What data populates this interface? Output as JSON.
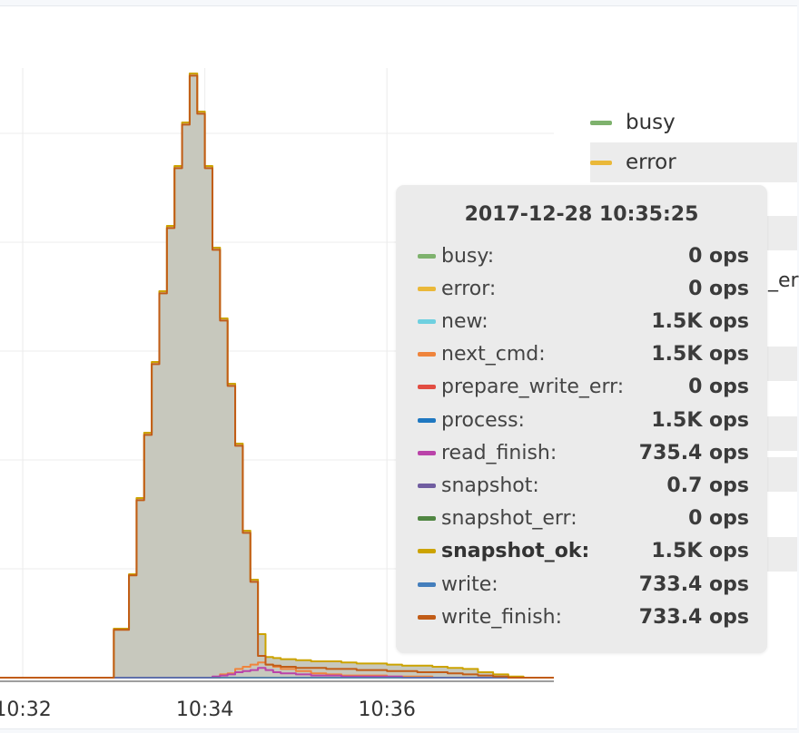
{
  "chart_data": {
    "type": "area",
    "x_ticks": [
      "10:32",
      "10:34",
      "10:36"
    ],
    "xlim": [
      "10:31:45",
      "10:37:50"
    ],
    "ylim": [
      0,
      5.6
    ],
    "grid": true,
    "legend_position": "right",
    "x": [
      "10:32:40",
      "10:32:50",
      "10:33:00",
      "10:33:10",
      "10:33:15",
      "10:33:20",
      "10:33:25",
      "10:33:30",
      "10:33:35",
      "10:33:40",
      "10:33:45",
      "10:33:50",
      "10:33:55",
      "10:34:00",
      "10:34:05",
      "10:34:10",
      "10:34:15",
      "10:34:20",
      "10:34:25",
      "10:34:30",
      "10:34:35",
      "10:34:40",
      "10:34:45",
      "10:34:50",
      "10:35:00",
      "10:35:10",
      "10:35:20",
      "10:35:30",
      "10:35:40",
      "10:35:50",
      "10:36:00",
      "10:36:10",
      "10:36:20",
      "10:36:30",
      "10:36:40",
      "10:36:50",
      "10:37:00",
      "10:37:10",
      "10:37:20",
      "10:37:30",
      "10:37:40"
    ],
    "series": [
      {
        "name": "busy",
        "color": "#7eb26d",
        "values": [
          0,
          0,
          0,
          0,
          0,
          0,
          0,
          0,
          0,
          0,
          0,
          0,
          0,
          0,
          0,
          0,
          0,
          0,
          0,
          0,
          0,
          0,
          0,
          0,
          0,
          0,
          0,
          0,
          0,
          0,
          0,
          0,
          0,
          0,
          0,
          0,
          0,
          0,
          0,
          0,
          0
        ]
      },
      {
        "name": "error",
        "color": "#eab839",
        "values": [
          0,
          0,
          0,
          0,
          0,
          0,
          0,
          0,
          0,
          0,
          0,
          0,
          0,
          0,
          0,
          0,
          0,
          0,
          0,
          0,
          0,
          0,
          0,
          0,
          0,
          0,
          0,
          0,
          0,
          0,
          0,
          0,
          0,
          0,
          0,
          0,
          0,
          0,
          0,
          0,
          0
        ]
      },
      {
        "name": "new",
        "color": "#6ed0e0",
        "values": [
          0,
          0,
          0,
          0,
          0,
          0,
          0,
          0,
          0,
          0,
          0,
          0,
          0,
          0,
          0,
          0,
          0,
          0,
          0,
          0,
          0,
          0,
          0,
          0,
          0,
          0,
          0,
          0,
          0,
          0,
          0,
          0,
          0,
          0,
          0,
          0,
          0,
          0,
          0,
          0,
          0
        ]
      },
      {
        "name": "next_cmd",
        "color": "#ef843c",
        "values": [
          0,
          0,
          0,
          0,
          0,
          0,
          0,
          0,
          0,
          0,
          0,
          0,
          0,
          0,
          0,
          0.03,
          0.04,
          0.08,
          0.1,
          0.12,
          0.14,
          0.12,
          0.1,
          0.08,
          0.06,
          0.04,
          0.03,
          0.02,
          0.02,
          0.02,
          0.01,
          0.01,
          0.01,
          0.0,
          0,
          0,
          0,
          0,
          0,
          0,
          0
        ]
      },
      {
        "name": "prepare_write_err",
        "color": "#e24d42",
        "values": [
          0,
          0,
          0,
          0,
          0,
          0,
          0,
          0,
          0,
          0,
          0,
          0,
          0,
          0,
          0,
          0,
          0,
          0,
          0,
          0,
          0,
          0,
          0,
          0,
          0,
          0,
          0,
          0,
          0,
          0,
          0,
          0,
          0,
          0,
          0,
          0,
          0,
          0,
          0,
          0,
          0
        ]
      },
      {
        "name": "process",
        "color": "#1f78c1",
        "values": [
          0,
          0,
          0,
          0,
          0,
          0,
          0,
          0,
          0,
          0,
          0,
          0,
          0,
          0,
          0,
          0,
          0,
          0,
          0,
          0,
          0,
          0,
          0,
          0,
          0,
          0,
          0,
          0,
          0,
          0,
          0,
          0,
          0,
          0,
          0,
          0,
          0,
          0,
          0,
          0,
          0
        ]
      },
      {
        "name": "read_finish",
        "color": "#ba43a9",
        "values": [
          0,
          0,
          0,
          0,
          0,
          0,
          0,
          0,
          0,
          0,
          0,
          0,
          0,
          0,
          0.01,
          0.02,
          0.03,
          0.05,
          0.06,
          0.07,
          0.09,
          0.07,
          0.05,
          0.04,
          0.03,
          0.02,
          0.02,
          0.01,
          0.01,
          0.01,
          0.01,
          0,
          0,
          0,
          0,
          0,
          0,
          0,
          0,
          0,
          0
        ]
      },
      {
        "name": "snapshot",
        "color": "#705da0",
        "values": [
          0,
          0,
          0,
          0,
          0,
          0,
          0,
          0,
          0,
          0,
          0,
          0,
          0,
          0,
          0,
          0,
          0,
          0,
          0,
          0,
          0,
          0,
          0,
          0,
          0,
          0,
          0,
          0,
          0,
          0,
          0,
          0,
          0,
          0,
          0,
          0,
          0,
          0,
          0,
          0,
          0
        ]
      },
      {
        "name": "snapshot_err",
        "color": "#508642",
        "values": [
          0,
          0,
          0,
          0,
          0,
          0,
          0,
          0,
          0,
          0,
          0,
          0,
          0,
          0,
          0,
          0,
          0,
          0,
          0,
          0,
          0,
          0,
          0,
          0,
          0,
          0,
          0,
          0,
          0,
          0,
          0,
          0,
          0,
          0,
          0,
          0,
          0,
          0,
          0,
          0,
          0
        ]
      },
      {
        "name": "snapshot_ok",
        "color": "#cca300",
        "values": [
          0,
          0,
          0.45,
          0.95,
          1.65,
          2.25,
          2.9,
          3.55,
          4.15,
          4.7,
          5.1,
          5.55,
          5.2,
          4.7,
          3.95,
          3.3,
          2.7,
          2.15,
          1.35,
          0.9,
          0.4,
          0.19,
          0.18,
          0.17,
          0.16,
          0.15,
          0.15,
          0.14,
          0.13,
          0.13,
          0.12,
          0.11,
          0.11,
          0.1,
          0.09,
          0.08,
          0.05,
          0.03,
          0.01,
          0,
          0
        ]
      },
      {
        "name": "write",
        "color": "#447ebc",
        "values": [
          0,
          0,
          0,
          0,
          0,
          0,
          0,
          0,
          0,
          0,
          0,
          0,
          0,
          0,
          0,
          0,
          0,
          0,
          0,
          0,
          0,
          0,
          0,
          0,
          0,
          0,
          0,
          0,
          0,
          0,
          0,
          0,
          0,
          0,
          0,
          0,
          0,
          0,
          0,
          0,
          0
        ]
      },
      {
        "name": "write_finish",
        "color": "#c15c17",
        "values": [
          0,
          0,
          0.44,
          0.94,
          1.63,
          2.23,
          2.88,
          3.53,
          4.13,
          4.68,
          5.08,
          5.53,
          5.18,
          4.68,
          3.93,
          3.28,
          2.68,
          2.13,
          1.33,
          0.88,
          0.2,
          0.12,
          0.11,
          0.1,
          0.09,
          0.09,
          0.08,
          0.08,
          0.07,
          0.07,
          0.06,
          0.06,
          0.05,
          0.05,
          0.04,
          0.03,
          0.02,
          0.01,
          0,
          0,
          0
        ]
      }
    ]
  },
  "legend": {
    "items": [
      {
        "label": "busy",
        "color": "#7eb26d"
      },
      {
        "label": "error",
        "color": "#eab839"
      }
    ],
    "peek_text": "_er"
  },
  "tooltip": {
    "title": "2017-12-28 10:35:25",
    "rows": [
      {
        "name": "busy:",
        "value": "0 ops",
        "color": "#7eb26d"
      },
      {
        "name": "error:",
        "value": "0 ops",
        "color": "#eab839"
      },
      {
        "name": "new:",
        "value": "1.5K ops",
        "color": "#6ed0e0"
      },
      {
        "name": "next_cmd:",
        "value": "1.5K ops",
        "color": "#ef843c"
      },
      {
        "name": "prepare_write_err:",
        "value": "0 ops",
        "color": "#e24d42"
      },
      {
        "name": "process:",
        "value": "1.5K ops",
        "color": "#1f78c1"
      },
      {
        "name": "read_finish:",
        "value": "735.4 ops",
        "color": "#ba43a9"
      },
      {
        "name": "snapshot:",
        "value": "0.7 ops",
        "color": "#705da0"
      },
      {
        "name": "snapshot_err:",
        "value": "0 ops",
        "color": "#508642"
      },
      {
        "name": "snapshot_ok:",
        "value": "1.5K ops",
        "color": "#cca300",
        "highlight": true
      },
      {
        "name": "write:",
        "value": "733.4 ops",
        "color": "#447ebc"
      },
      {
        "name": "write_finish:",
        "value": "733.4 ops",
        "color": "#c15c17"
      }
    ]
  }
}
